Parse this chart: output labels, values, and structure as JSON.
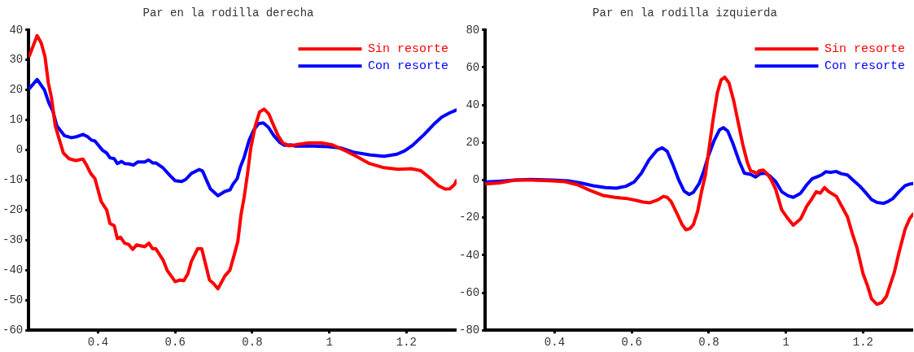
{
  "chart_data": [
    {
      "type": "line",
      "title": "Par en la rodilla derecha",
      "xlim": [
        0.22,
        1.33
      ],
      "xticks": [
        0.4,
        0.6,
        0.8,
        1,
        1.2
      ],
      "ylim": [
        -60,
        40
      ],
      "yticks": [
        -60,
        -50,
        -40,
        -30,
        -20,
        -10,
        0,
        10,
        20,
        30,
        40
      ],
      "grid": false,
      "legend": "top right",
      "marker": "none",
      "line_style": "solid",
      "series": [
        {
          "name": "Sin resorte",
          "color": "#ff0000",
          "x": [
            0.222,
            0.242,
            0.2525,
            0.2625,
            0.271,
            0.279,
            0.289,
            0.3,
            0.31,
            0.325,
            0.342,
            0.361,
            0.371,
            0.381,
            0.392,
            0.408,
            0.4225,
            0.431,
            0.442,
            0.45,
            0.458,
            0.469,
            0.479,
            0.49,
            0.5,
            0.521,
            0.532,
            0.5417,
            0.55,
            0.569,
            0.579,
            0.6,
            0.6125,
            0.6225,
            0.633,
            0.642,
            0.658,
            0.669,
            0.679,
            0.689,
            0.7,
            0.711,
            0.729,
            0.742,
            0.7525,
            0.7625,
            0.771,
            0.779,
            0.7875,
            0.796,
            0.808,
            0.819,
            0.831,
            0.8425,
            0.854,
            0.867,
            0.879,
            0.896,
            0.921,
            0.946,
            0.979,
            1.008,
            1.0375,
            1.067,
            1.104,
            1.142,
            1.179,
            1.2125,
            1.2375,
            1.2625,
            1.283,
            1.3,
            1.3125,
            1.325,
            1.329
          ],
          "values": [
            31.4,
            38.1,
            35.7,
            31,
            22.4,
            17.6,
            8.1,
            3.3,
            -1,
            -2.9,
            -3.5,
            -3,
            -5.2,
            -7.8,
            -9.5,
            -17.1,
            -20,
            -24.5,
            -25.2,
            -29.5,
            -29,
            -31,
            -31.4,
            -33.1,
            -31.6,
            -32.2,
            -31,
            -32.9,
            -32.9,
            -36.7,
            -40,
            -43.8,
            -43.3,
            -43.5,
            -41.2,
            -37.1,
            -32.9,
            -32.9,
            -38.1,
            -43.3,
            -44.5,
            -46.2,
            -41.9,
            -40,
            -35.2,
            -30.5,
            -21.4,
            -15.7,
            -8.1,
            0.5,
            8.1,
            12.7,
            13.6,
            12.1,
            8.6,
            4.8,
            2.4,
            1.4,
            1.9,
            2.4,
            2.4,
            1.7,
            0,
            -1.9,
            -4.5,
            -5.9,
            -6.4,
            -6.2,
            -6.9,
            -9.5,
            -11.9,
            -13,
            -12.9,
            -11.4,
            -10.2
          ]
        },
        {
          "name": "Con resorte",
          "color": "#0000ff",
          "x": [
            0.222,
            0.242,
            0.261,
            0.2725,
            0.283,
            0.293,
            0.3125,
            0.331,
            0.346,
            0.361,
            0.3725,
            0.383,
            0.392,
            0.411,
            0.4225,
            0.431,
            0.442,
            0.45,
            0.461,
            0.469,
            0.479,
            0.4917,
            0.5025,
            0.521,
            0.531,
            0.5417,
            0.55,
            0.569,
            0.5875,
            0.6,
            0.617,
            0.6275,
            0.642,
            0.6625,
            0.671,
            0.683,
            0.6917,
            0.711,
            0.729,
            0.742,
            0.75,
            0.761,
            0.769,
            0.779,
            0.792,
            0.804,
            0.8167,
            0.829,
            0.8417,
            0.856,
            0.871,
            0.883,
            0.9,
            0.9125,
            0.946,
            0.9875,
            1.029,
            1.0625,
            1.104,
            1.142,
            1.175,
            1.196,
            1.217,
            1.246,
            1.271,
            1.2917,
            1.3125,
            1.329
          ],
          "values": [
            20.5,
            23.5,
            20,
            15.7,
            12.9,
            8.1,
            4.8,
            4.1,
            4.5,
            5.2,
            4.5,
            3.3,
            3,
            0,
            -1,
            -2.6,
            -2.9,
            -4.5,
            -3.8,
            -4.5,
            -4.6,
            -5,
            -4,
            -4,
            -3.3,
            -4.3,
            -4.3,
            -6,
            -8.6,
            -10.2,
            -10.5,
            -9.8,
            -7.8,
            -6.5,
            -7,
            -10.5,
            -13,
            -15.2,
            -13.8,
            -13.3,
            -11.4,
            -9.5,
            -5.7,
            -2.4,
            3.3,
            6.7,
            8.8,
            9,
            7.6,
            4.8,
            2.6,
            1.6,
            1.7,
            1.3,
            1.4,
            1.2,
            0.7,
            -0.7,
            -1.6,
            -2.1,
            -1.4,
            -0.2,
            1.7,
            5.2,
            8.6,
            11,
            12.4,
            13.3
          ]
        }
      ]
    },
    {
      "type": "line",
      "title": "Par en la rodilla izquierda",
      "xlim": [
        0.22,
        1.33
      ],
      "xticks": [
        0.4,
        0.6,
        0.8,
        1,
        1.2
      ],
      "ylim": [
        -80,
        80
      ],
      "yticks": [
        -80,
        -60,
        -40,
        -20,
        0,
        20,
        40,
        60,
        80
      ],
      "grid": false,
      "legend": "top right",
      "marker": "none",
      "line_style": "solid",
      "series": [
        {
          "name": "Sin resorte",
          "color": "#ff0000",
          "x": [
            0.222,
            0.257,
            0.297,
            0.3376,
            0.394,
            0.427,
            0.459,
            0.4915,
            0.524,
            0.556,
            0.589,
            0.609,
            0.629,
            0.647,
            0.666,
            0.682,
            0.692,
            0.702,
            0.718,
            0.7305,
            0.741,
            0.751,
            0.76,
            0.771,
            0.781,
            0.791,
            0.799,
            0.811,
            0.822,
            0.8316,
            0.841,
            0.852,
            0.864,
            0.876,
            0.888,
            0.9,
            0.9085,
            0.9166,
            0.925,
            0.93,
            0.941,
            0.951,
            0.961,
            0.973,
            0.989,
            1.0057,
            1.019,
            1.038,
            1.054,
            1.066,
            1.0785,
            1.089,
            1.1,
            1.111,
            1.131,
            1.143,
            1.1595,
            1.172,
            1.184,
            1.2,
            1.212,
            1.222,
            1.236,
            1.2486,
            1.261,
            1.269,
            1.281,
            1.293,
            1.309,
            1.3215,
            1.33
          ],
          "values": [
            -2.1,
            -1.5,
            0,
            0,
            -0.4,
            -0.9,
            -2.5,
            -5.5,
            -8.1,
            -9.2,
            -9.9,
            -10.7,
            -11.7,
            -12.1,
            -10.7,
            -8.7,
            -9.2,
            -11.4,
            -18.1,
            -23.7,
            -26.5,
            -25.8,
            -23.7,
            -16.6,
            -6.2,
            2.7,
            14.5,
            32.3,
            46.4,
            53.3,
            54.8,
            51.9,
            42.7,
            30.8,
            19,
            9.3,
            4.9,
            4.4,
            3.4,
            4.9,
            5.3,
            3.4,
            0.4,
            -4.7,
            -15.9,
            -20.7,
            -24,
            -20.7,
            -13.9,
            -10.4,
            -6.2,
            -7,
            -4,
            -6.2,
            -8.7,
            -13.3,
            -19.6,
            -28.4,
            -35.9,
            -49.9,
            -56.6,
            -63.3,
            -66.2,
            -65.2,
            -61.8,
            -56.6,
            -49.2,
            -38.8,
            -26.2,
            -20.3,
            -18.1
          ]
        },
        {
          "name": "Con resorte",
          "color": "#0000ff",
          "x": [
            0.222,
            0.257,
            0.297,
            0.3376,
            0.394,
            0.435,
            0.467,
            0.5,
            0.532,
            0.56,
            0.585,
            0.6065,
            0.625,
            0.645,
            0.666,
            0.679,
            0.692,
            0.706,
            0.722,
            0.736,
            0.749,
            0.76,
            0.775,
            0.787,
            0.799,
            0.814,
            0.8275,
            0.838,
            0.849,
            0.862,
            0.8785,
            0.892,
            0.9085,
            0.921,
            0.933,
            0.945,
            0.957,
            0.973,
            0.989,
            1.0057,
            1.019,
            1.038,
            1.054,
            1.068,
            1.0826,
            1.092,
            1.103,
            1.1166,
            1.13,
            1.143,
            1.1595,
            1.1757,
            1.192,
            1.208,
            1.222,
            1.236,
            1.253,
            1.265,
            1.277,
            1.293,
            1.309,
            1.3215,
            1.33
          ],
          "values": [
            -1,
            -0.6,
            0,
            0.3,
            0,
            -0.4,
            -1.5,
            -3,
            -4,
            -4.3,
            -3.3,
            -1,
            3.7,
            10.8,
            16,
            17.2,
            15.3,
            8.6,
            0,
            -5.9,
            -7.7,
            -6.5,
            -1.8,
            4.9,
            13,
            21.2,
            26.7,
            27.9,
            26.1,
            19.7,
            10.1,
            3.7,
            3,
            1.6,
            3.4,
            3.7,
            2.4,
            -0.7,
            -6.2,
            -8.4,
            -9.2,
            -7,
            -2.5,
            0.7,
            1.9,
            2.7,
            4.4,
            4.1,
            4.6,
            3.4,
            2.7,
            -0.3,
            -3.3,
            -7,
            -10.4,
            -11.9,
            -12.4,
            -11.4,
            -9.9,
            -6.2,
            -3,
            -2.1,
            -1.8
          ]
        }
      ]
    }
  ]
}
